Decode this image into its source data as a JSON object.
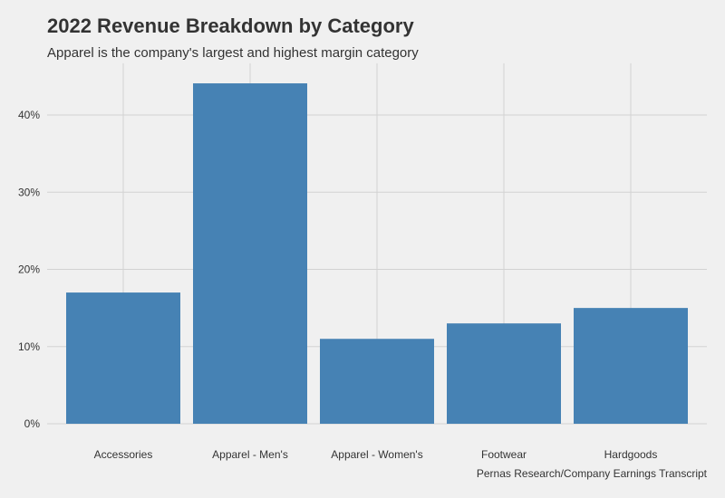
{
  "chart_data": {
    "type": "bar",
    "title": "2022 Revenue Breakdown by Category",
    "subtitle": "Apparel is the company's largest and highest margin category",
    "caption": "Pernas Research/Company Earnings Transcript",
    "xlabel": "",
    "ylabel": "",
    "categories": [
      "Accessories",
      "Apparel - Men's",
      "Apparel - Women's",
      "Footwear",
      "Hardgoods"
    ],
    "values": [
      17,
      44.1,
      11,
      13,
      15
    ],
    "unit": "%",
    "yticks": [
      0,
      10,
      20,
      30,
      40
    ],
    "ytick_labels": [
      "0%",
      "10%",
      "20%",
      "30%",
      "40%"
    ],
    "ylim": [
      0,
      46
    ],
    "grid": true,
    "colors": {
      "bar": "#4682b4",
      "background": "#f0f0f0",
      "grid": "#d2d2d2"
    }
  }
}
